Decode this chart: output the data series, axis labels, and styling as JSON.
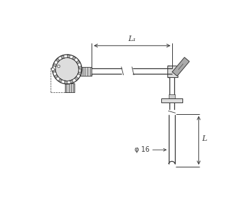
{
  "bg_color": "#ffffff",
  "line_color": "#333333",
  "L1_label": "L₁",
  "L_label": "L",
  "phi_label": "φ 16",
  "figsize": [
    3.6,
    3.0
  ],
  "dpi": 100
}
